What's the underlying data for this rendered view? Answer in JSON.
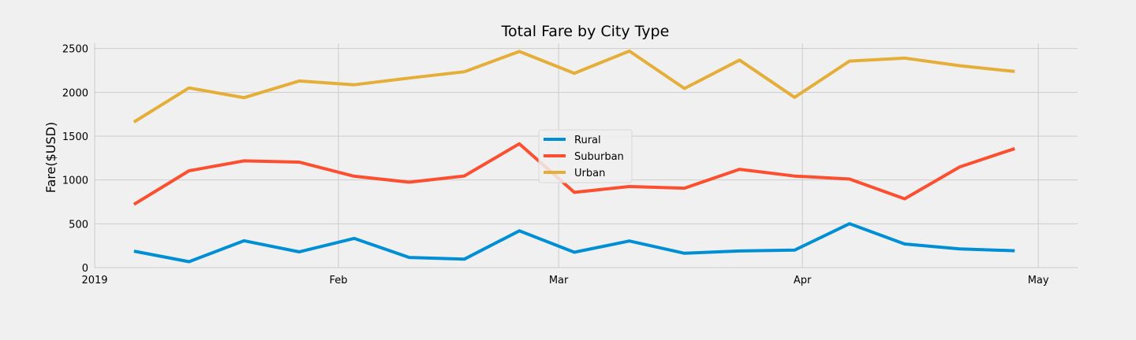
{
  "chart_data": {
    "type": "line",
    "title": "Total Fare by City Type",
    "xlabel": "",
    "ylabel": "Fare($USD)",
    "x": [
      "2019-01-06",
      "2019-01-13",
      "2019-01-20",
      "2019-01-27",
      "2019-02-03",
      "2019-02-10",
      "2019-02-17",
      "2019-02-24",
      "2019-03-03",
      "2019-03-10",
      "2019-03-17",
      "2019-03-24",
      "2019-03-31",
      "2019-04-07",
      "2019-04-14",
      "2019-04-21",
      "2019-04-28"
    ],
    "series": [
      {
        "name": "Rural",
        "color": "#008fd5",
        "values": [
          187.92,
          67.65,
          306.0,
          179.69,
          333.08,
          115.8,
          95.82,
          419.06,
          175.14,
          303.94,
          163.39,
          189.76,
          199.42,
          501.24,
          269.79,
          214.14,
          191.85
        ]
      },
      {
        "name": "Suburban",
        "color": "#fc4f30",
        "values": [
          721.6,
          1105.13,
          1218.2,
          1203.28,
          1042.79,
          974.34,
          1045.5,
          1412.74,
          858.46,
          925.27,
          906.2,
          1122.2,
          1045.06,
          1010.73,
          784.82,
          1149.27,
          1357.75
        ]
      },
      {
        "name": "Urban",
        "color": "#e5ae38",
        "values": [
          1661.68,
          2050.43,
          1939.02,
          2129.51,
          2086.94,
          2162.64,
          2235.07,
          2466.29,
          2218.2,
          2470.93,
          2044.42,
          2368.37,
          1942.77,
          2356.7,
          2390.72,
          2303.8,
          2238.29
        ]
      }
    ],
    "xaxis": {
      "min": "2019-01-01",
      "max": "2019-05-06",
      "ticks": [
        {
          "date": "2019-01-01",
          "label": "2019"
        },
        {
          "date": "2019-02-01",
          "label": "Feb"
        },
        {
          "date": "2019-03-01",
          "label": "Mar"
        },
        {
          "date": "2019-04-01",
          "label": "Apr"
        },
        {
          "date": "2019-05-01",
          "label": "May"
        }
      ]
    },
    "ylim": [
      0,
      2560
    ],
    "yticks": [
      0,
      500,
      1000,
      1500,
      2000,
      2500
    ],
    "grid": true,
    "legend": "center"
  }
}
